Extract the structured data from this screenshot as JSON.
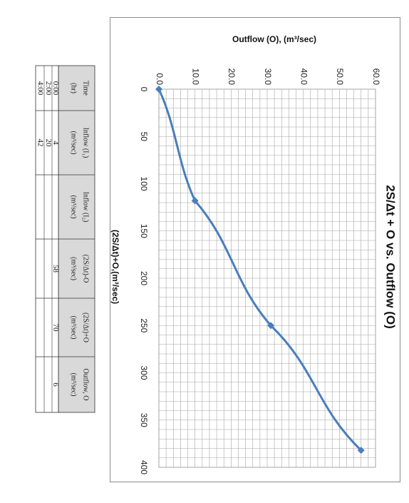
{
  "chart_data": {
    "type": "line",
    "title": "2S/Δt + O vs. Outflow (O)",
    "xlabel": "(2S/Δt)+O,(m³/sec)",
    "ylabel": "Outflow (O), (m³/sec)",
    "x_ticks": [
      "0",
      "50",
      "100",
      "150",
      "200",
      "250",
      "300",
      "350",
      "400"
    ],
    "y_ticks": [
      "0.0",
      "10.0",
      "20.0",
      "30.0",
      "40.0",
      "50.0",
      "60.0"
    ],
    "xlim": [
      0,
      400
    ],
    "ylim": [
      0,
      60
    ],
    "grid": true,
    "orientation": "rotated 90 degrees clockwise",
    "series": [
      {
        "color": "#4a7ebb",
        "x": [
          0,
          118,
          250,
          382
        ],
        "y": [
          0,
          10,
          31,
          56
        ]
      }
    ]
  },
  "table": {
    "headers": [
      {
        "line1": "Time",
        "line2": "(hr)"
      },
      {
        "line1": "Inflow (I₁)",
        "line2": "(m³/sec)"
      },
      {
        "line1": "Inflow (I₂)",
        "line2": "(m³/sec)"
      },
      {
        "line1": "(2S/Δt)-O",
        "line2": "(m³/sec)"
      },
      {
        "line1": "(2S/Δt)+O",
        "line2": "(m³/sec)"
      },
      {
        "line1": "Outflow, O",
        "line2": "(m³/sec)"
      }
    ],
    "rows": [
      [
        "0:00",
        "4",
        "",
        "58",
        "70",
        "6"
      ],
      [
        "2:00",
        "20",
        "",
        "",
        "",
        ""
      ],
      [
        "4:00",
        "42",
        "",
        "",
        "",
        ""
      ]
    ]
  },
  "colors": {
    "series": "#4a7ebb",
    "grid": "#a6a6a6",
    "header_fill": "#d9d9d9"
  }
}
